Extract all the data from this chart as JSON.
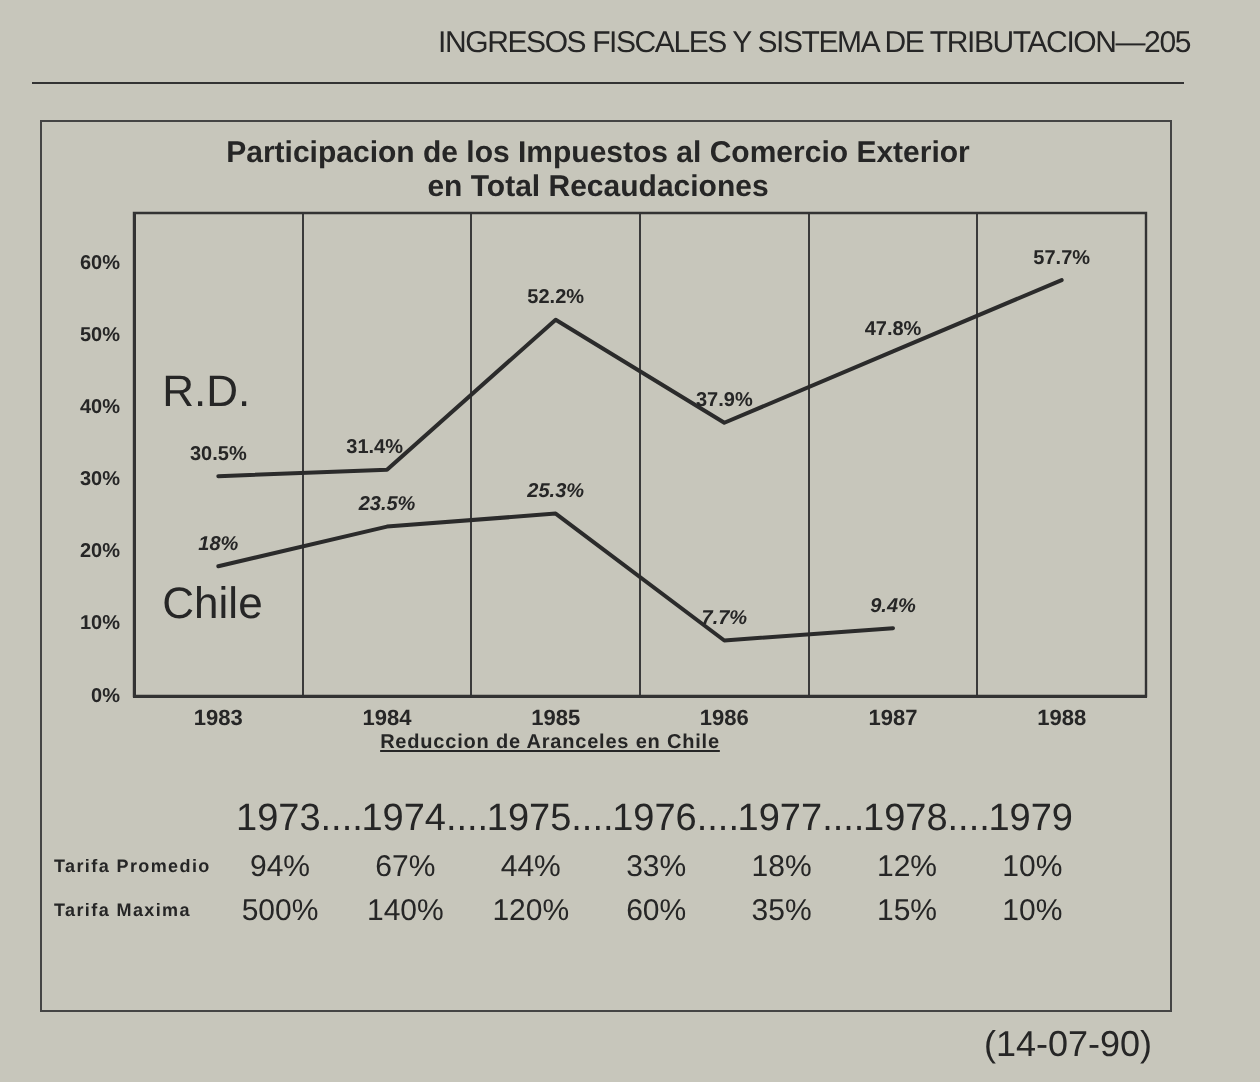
{
  "chart_data": [
    {
      "type": "line",
      "title": "Participacion de los Impuestos al Comercio Exterior en Total Recaudaciones",
      "categories": [
        "1983",
        "1984",
        "1985",
        "1986",
        "1987",
        "1988"
      ],
      "series": [
        {
          "name": "R.D.",
          "color": "#2b2b2b",
          "values": [
            30.5,
            31.4,
            52.2,
            37.9,
            47.8,
            57.7
          ],
          "value_labels": [
            "30.5%",
            "31.4%",
            "52.2%",
            "37.9%",
            "47.8%",
            "57.7%"
          ]
        },
        {
          "name": "Chile",
          "color": "#2b2b2b",
          "values": [
            18,
            23.5,
            25.3,
            7.7,
            9.4,
            null
          ],
          "value_labels": [
            "18%",
            "23.5%",
            "25.3%",
            "7.7%",
            "9.4%",
            null
          ]
        }
      ],
      "ylim": [
        0,
        67
      ],
      "yticks": [
        {
          "value": 0,
          "label": "0%"
        },
        {
          "value": 10,
          "label": "10%"
        },
        {
          "value": 20,
          "label": "20%"
        },
        {
          "value": 30,
          "label": "30%"
        },
        {
          "value": 40,
          "label": "40%"
        },
        {
          "value": 50,
          "label": "50%"
        },
        {
          "value": 60,
          "label": "60%"
        }
      ],
      "grid": "x",
      "marker": "none",
      "annotations": [
        "INGRESOS FISCALES Y SISTEMA DE TRIBUTACION—205"
      ]
    },
    {
      "type": "heatmap",
      "title": "Reduccion de Aranceles en Chile",
      "categories": [
        "1973....",
        "1974....",
        "1975....",
        "1976....",
        "1977....",
        "1978....",
        "1979"
      ],
      "y_categories": [
        "Tarifa Promedio",
        "Tarifa Maxima"
      ],
      "cells": [
        [
          94,
          67,
          44,
          33,
          18,
          12,
          10
        ],
        [
          500,
          140,
          120,
          60,
          35,
          15,
          10
        ]
      ],
      "cell_labels": [
        [
          "94%",
          "67%",
          "44%",
          "33%",
          "18%",
          "12%",
          "10%"
        ],
        [
          "500%",
          "140%",
          "120%",
          "60%",
          "35%",
          "15%",
          "10%"
        ]
      ],
      "annotations": [
        "(14-07-90)"
      ]
    }
  ]
}
